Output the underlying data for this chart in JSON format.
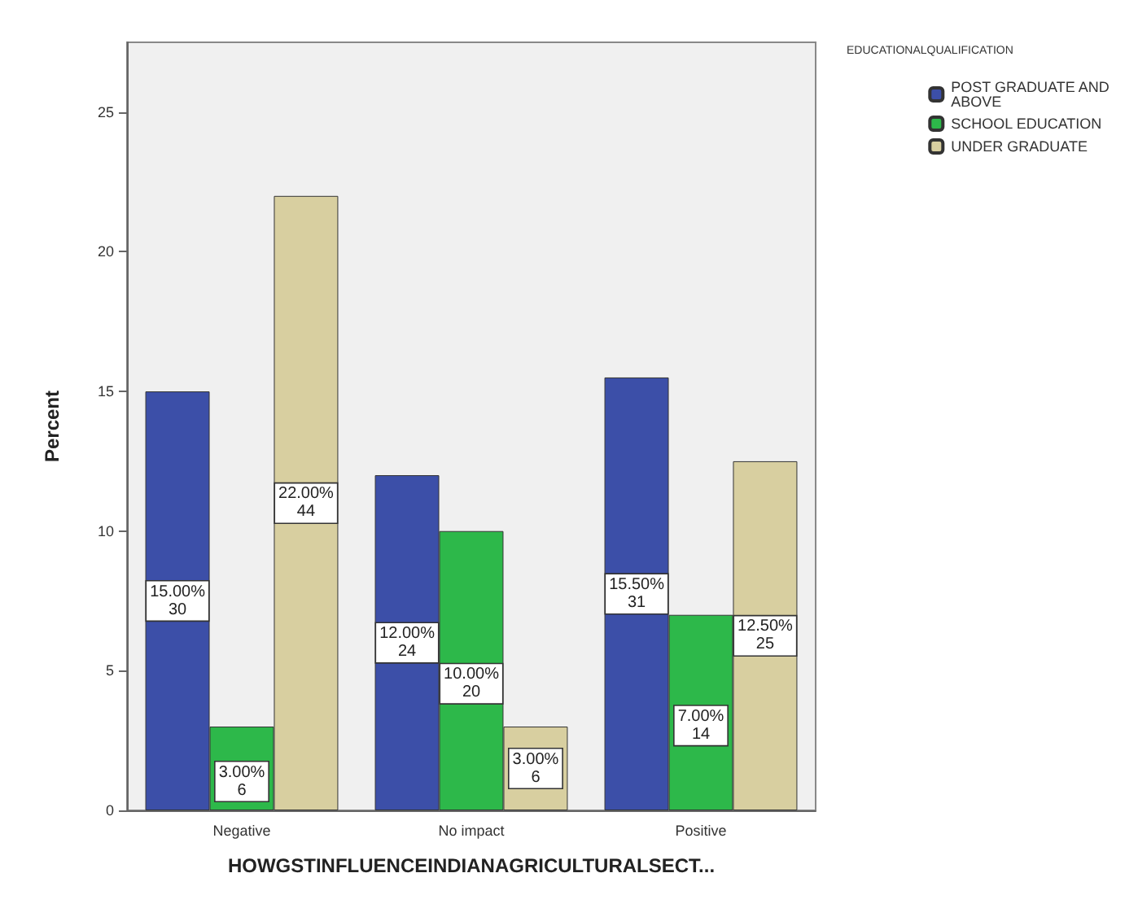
{
  "chart_data": {
    "type": "bar",
    "xlabel": "HOWGSTINFLUENCEINDIANAGRICULTURALSECT...",
    "ylabel": "Percent",
    "legend_title": "EDUCATIONALQUALIFICATION",
    "categories": [
      "Negative",
      "No impact",
      "Positive"
    ],
    "series": [
      {
        "name": "POST GRADUATE AND\nABOVE",
        "color": "#3c4fa8",
        "values": [
          15,
          12,
          15.5
        ],
        "value_labels": [
          "15.00%\n30",
          "12.00%\n24",
          "15.50%\n31"
        ]
      },
      {
        "name": "SCHOOL EDUCATION",
        "color": "#2db84a",
        "values": [
          3,
          10,
          7
        ],
        "value_labels": [
          "3.00%\n6",
          "10.00%\n20",
          "7.00%\n14"
        ]
      },
      {
        "name": "UNDER GRADUATE",
        "color": "#d8cfa0",
        "values": [
          22,
          3,
          12.5
        ],
        "value_labels": [
          "22.00%\n44",
          "3.00%\n6",
          "12.50%\n25"
        ]
      }
    ],
    "ylim": [
      0,
      27.5
    ],
    "yticks": [
      0,
      5,
      10,
      15,
      20,
      25
    ],
    "grid": false,
    "legend": "top right"
  }
}
